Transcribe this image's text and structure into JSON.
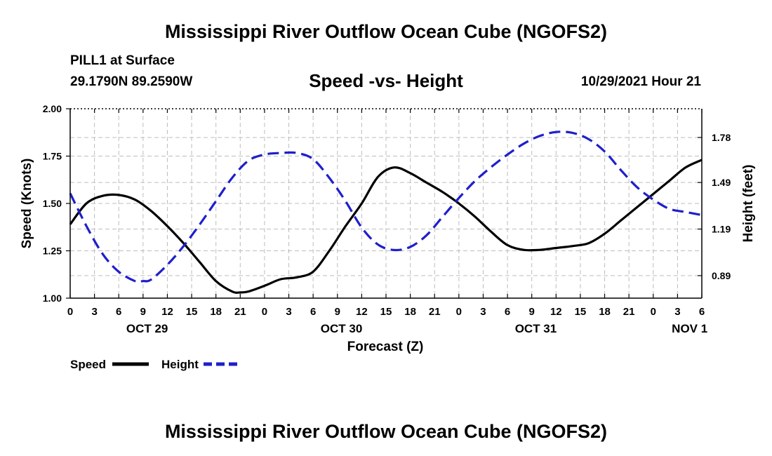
{
  "header": {
    "title": "Mississippi River Outflow Ocean Cube (NGOFS2)",
    "station": "PILL1 at Surface",
    "coords": "29.1790N  89.2590W",
    "subtitle": "Speed -vs- Height",
    "datetime": "10/29/2021 Hour 21"
  },
  "footer": {
    "title": "Mississippi River Outflow Ocean Cube (NGOFS2)"
  },
  "colors": {
    "speed": "#000000",
    "height": "#1f1fcc",
    "grid": "#bdbdbd"
  },
  "chart_data": {
    "type": "line",
    "title": "Speed -vs- Height",
    "xlabel": "Forecast (Z)",
    "ylabel": "Speed (Knots)",
    "y2label": "Height (feet)",
    "xlim": [
      0,
      78
    ],
    "ylim": [
      1.0,
      2.0
    ],
    "y2_range_for_axis": [
      0.745,
      1.965
    ],
    "x_ticks": [
      0,
      3,
      6,
      9,
      12,
      15,
      18,
      21,
      24,
      27,
      30,
      33,
      36,
      39,
      42,
      45,
      48,
      51,
      54,
      57,
      60,
      63,
      66,
      69,
      72,
      75,
      78
    ],
    "x_tick_labels": [
      "0",
      "3",
      "6",
      "9",
      "12",
      "15",
      "18",
      "21",
      "0",
      "3",
      "6",
      "9",
      "12",
      "15",
      "18",
      "21",
      "0",
      "3",
      "6",
      "9",
      "12",
      "15",
      "18",
      "21",
      "0",
      "3",
      "6"
    ],
    "day_labels": [
      {
        "label": "OCT 29",
        "x": 9.5
      },
      {
        "label": "OCT 30",
        "x": 33.5
      },
      {
        "label": "OCT 31",
        "x": 57.5
      },
      {
        "label": "NOV 1",
        "x": 76.5
      }
    ],
    "y_ticks": [
      1.0,
      1.25,
      1.5,
      1.75,
      2.0
    ],
    "y_tick_labels": [
      "1.00",
      "1.25",
      "1.50",
      "1.75",
      "2.00"
    ],
    "y2_ticks": [
      0.89,
      1.19,
      1.49,
      1.78
    ],
    "y2_tick_labels": [
      "0.89",
      "1.19",
      "1.49",
      "1.78"
    ],
    "grid": true,
    "series": [
      {
        "name": "Speed",
        "axis": "left",
        "style": "solid",
        "x": [
          0,
          2,
          4,
          6,
          8,
          10,
          12,
          14,
          16,
          18,
          20,
          21,
          22,
          24,
          26,
          28,
          30,
          32,
          34,
          36,
          38,
          40,
          42,
          44,
          46,
          48,
          50,
          52,
          54,
          56,
          58,
          60,
          62,
          64,
          66,
          68,
          70,
          72,
          74,
          76,
          78
        ],
        "values": [
          1.39,
          1.5,
          1.54,
          1.545,
          1.52,
          1.46,
          1.38,
          1.29,
          1.19,
          1.09,
          1.035,
          1.03,
          1.035,
          1.065,
          1.1,
          1.11,
          1.14,
          1.25,
          1.38,
          1.5,
          1.64,
          1.69,
          1.66,
          1.61,
          1.56,
          1.5,
          1.43,
          1.35,
          1.28,
          1.255,
          1.255,
          1.265,
          1.275,
          1.29,
          1.34,
          1.41,
          1.48,
          1.55,
          1.62,
          1.69,
          1.73
        ]
      },
      {
        "name": "Height",
        "axis": "right",
        "style": "dashed",
        "x": [
          0,
          2,
          4,
          6,
          8,
          9,
          10,
          12,
          14,
          16,
          18,
          20,
          22,
          24,
          26,
          28,
          30,
          32,
          34,
          36,
          38,
          40,
          42,
          44,
          46,
          48,
          50,
          52,
          54,
          56,
          58,
          60,
          62,
          64,
          66,
          68,
          70,
          72,
          74,
          76,
          78
        ],
        "values": [
          1.42,
          1.21,
          1.03,
          0.915,
          0.855,
          0.855,
          0.865,
          0.96,
          1.08,
          1.22,
          1.37,
          1.52,
          1.63,
          1.67,
          1.68,
          1.68,
          1.64,
          1.52,
          1.37,
          1.2,
          1.09,
          1.055,
          1.075,
          1.15,
          1.27,
          1.39,
          1.5,
          1.59,
          1.67,
          1.74,
          1.79,
          1.815,
          1.81,
          1.77,
          1.69,
          1.57,
          1.46,
          1.38,
          1.32,
          1.3,
          1.28
        ]
      }
    ],
    "legend": [
      {
        "label": "Speed",
        "series": "Speed"
      },
      {
        "label": "Height",
        "series": "Height"
      }
    ]
  }
}
